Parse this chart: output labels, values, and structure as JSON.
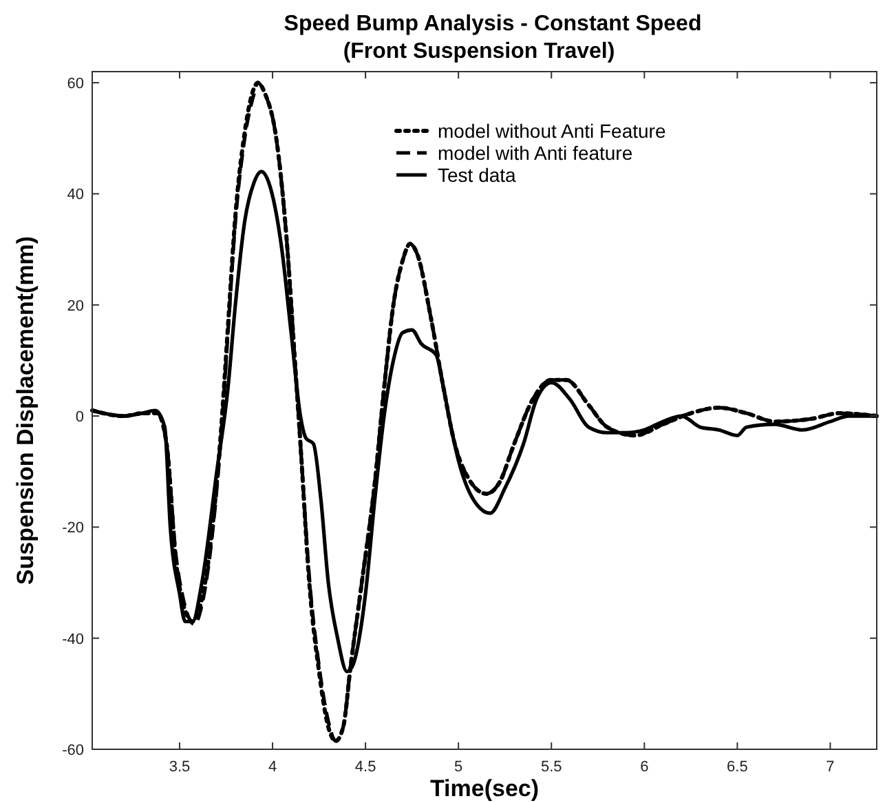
{
  "chart_data": {
    "type": "line",
    "title": "Speed Bump Analysis - Constant Speed",
    "subtitle": "(Front Suspension Travel)",
    "xlabel": "Time(sec)",
    "ylabel": "Suspension Displacement(mm)",
    "xlim": [
      3.03,
      7.25
    ],
    "ylim": [
      -60,
      62
    ],
    "xticks": [
      3.5,
      4,
      4.5,
      5,
      5.5,
      6,
      6.5,
      7
    ],
    "yticks": [
      -60,
      -40,
      -20,
      0,
      20,
      40,
      60
    ],
    "grid": false,
    "legend": "top right",
    "series": [
      {
        "name": "model without Anti Feature",
        "color": "#000000",
        "line_style": "dotted",
        "x": [
          3.03,
          3.2,
          3.3,
          3.38,
          3.43,
          3.48,
          3.52,
          3.57,
          3.62,
          3.68,
          3.72,
          3.76,
          3.8,
          3.85,
          3.9,
          3.92,
          3.96,
          4.02,
          4.08,
          4.12,
          4.15,
          4.2,
          4.25,
          4.3,
          4.34,
          4.38,
          4.42,
          4.48,
          4.55,
          4.6,
          4.65,
          4.7,
          4.74,
          4.78,
          4.85,
          4.92,
          4.98,
          5.05,
          5.15,
          5.22,
          5.3,
          5.4,
          5.5,
          5.58,
          5.7,
          5.8,
          5.95,
          6.1,
          6.25,
          6.4,
          6.55,
          6.7,
          6.9,
          7.05,
          7.25
        ],
        "values": [
          1,
          0,
          0.5,
          0.5,
          -5,
          -26,
          -34,
          -37,
          -33,
          -19,
          -4,
          16,
          36,
          51,
          59,
          60,
          58,
          50,
          30,
          10,
          -5,
          -31,
          -46,
          -56,
          -58.5,
          -56,
          -45,
          -30,
          -12,
          5,
          20,
          28,
          31,
          29,
          18,
          5,
          -5,
          -11,
          -14,
          -12,
          -5,
          3,
          6.5,
          6.5,
          2,
          -2,
          -3.5,
          -1.5,
          0.5,
          1.5,
          0.5,
          -1,
          -0.5,
          0.5,
          0
        ]
      },
      {
        "name": "model with Anti feature",
        "color": "#000000",
        "line_style": "dashed",
        "x": [
          3.03,
          3.2,
          3.3,
          3.38,
          3.43,
          3.48,
          3.52,
          3.58,
          3.62,
          3.68,
          3.72,
          3.76,
          3.8,
          3.85,
          3.9,
          3.92,
          3.96,
          4.02,
          4.08,
          4.12,
          4.15,
          4.2,
          4.25,
          4.3,
          4.34,
          4.38,
          4.42,
          4.48,
          4.55,
          4.6,
          4.65,
          4.7,
          4.74,
          4.78,
          4.85,
          4.92,
          4.98,
          5.05,
          5.15,
          5.22,
          5.3,
          5.4,
          5.5,
          5.58,
          5.7,
          5.8,
          5.95,
          6.1,
          6.25,
          6.4,
          6.55,
          6.7,
          6.9,
          7.05,
          7.25
        ],
        "values": [
          1,
          0,
          0.5,
          0.5,
          -5,
          -25,
          -33,
          -37.5,
          -34,
          -20,
          -5,
          15,
          35,
          50,
          58,
          60,
          58,
          50,
          30,
          10,
          -5,
          -30,
          -45,
          -55,
          -58.5,
          -56,
          -45,
          -30,
          -12,
          5,
          20,
          28,
          31,
          29,
          18,
          5,
          -5,
          -11,
          -14,
          -12,
          -5,
          3,
          6.5,
          6.5,
          2,
          -2,
          -3.5,
          -1.5,
          0.5,
          1.5,
          0.5,
          -1,
          -0.5,
          0.5,
          0
        ]
      },
      {
        "name": "Test data",
        "color": "#000000",
        "line_style": "solid",
        "x": [
          3.03,
          3.2,
          3.3,
          3.37,
          3.42,
          3.45,
          3.5,
          3.53,
          3.57,
          3.62,
          3.7,
          3.76,
          3.8,
          3.85,
          3.9,
          3.94,
          3.98,
          4.05,
          4.1,
          4.15,
          4.18,
          4.22,
          4.26,
          4.3,
          4.35,
          4.4,
          4.43,
          4.5,
          4.55,
          4.6,
          4.65,
          4.7,
          4.75,
          4.8,
          4.88,
          4.92,
          4.96,
          5.0,
          5.1,
          5.17,
          5.25,
          5.35,
          5.42,
          5.5,
          5.6,
          5.7,
          5.8,
          5.9,
          6.0,
          6.1,
          6.2,
          6.3,
          6.4,
          6.5,
          6.55,
          6.7,
          6.85,
          7.0,
          7.1,
          7.25
        ],
        "values": [
          1,
          0,
          0.5,
          1,
          -2,
          -20,
          -32,
          -37,
          -37,
          -30,
          -10,
          5,
          20,
          35,
          42,
          44,
          42,
          30,
          15,
          0,
          -4,
          -5,
          -15,
          -30,
          -40,
          -46,
          -45,
          -32,
          -15,
          0,
          10,
          15,
          15.5,
          13,
          11,
          5,
          -2,
          -8,
          -16,
          -17.5,
          -13,
          -5,
          3,
          6,
          3,
          -2,
          -3,
          -3,
          -2.5,
          -1,
          0,
          -2,
          -2.5,
          -3.5,
          -2,
          -1.5,
          -2.5,
          -1,
          0,
          0
        ]
      }
    ]
  }
}
